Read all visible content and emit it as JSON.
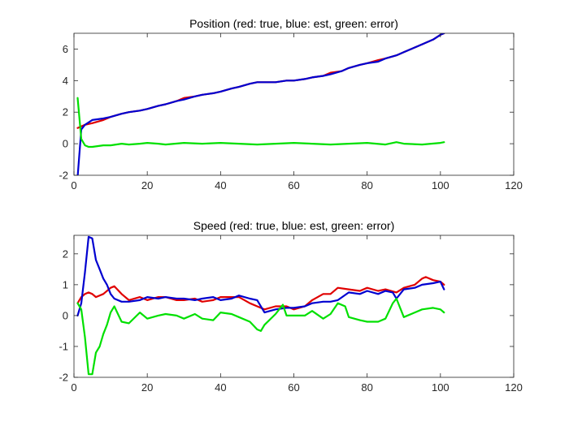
{
  "chart_data": [
    {
      "type": "line",
      "title": "Position (red: true, blue: est, green: error)",
      "xlim": [
        0,
        120
      ],
      "ylim": [
        -2,
        7
      ],
      "xticks": [
        0,
        20,
        40,
        60,
        80,
        100,
        120
      ],
      "yticks": [
        -2,
        0,
        2,
        4,
        6
      ],
      "grid": false,
      "series": [
        {
          "color": "#e00000",
          "x": [
            1,
            2,
            3,
            5,
            8,
            10,
            13,
            15,
            18,
            20,
            23,
            25,
            28,
            30,
            33,
            35,
            38,
            40,
            43,
            45,
            48,
            50,
            52,
            55,
            58,
            60,
            63,
            65,
            68,
            70,
            73,
            75,
            78,
            80,
            83,
            85,
            88,
            90,
            93,
            95,
            98,
            100,
            101
          ],
          "y": [
            1.0,
            1.1,
            1.2,
            1.3,
            1.5,
            1.7,
            1.9,
            2.0,
            2.1,
            2.2,
            2.4,
            2.5,
            2.7,
            2.9,
            3.0,
            3.1,
            3.2,
            3.3,
            3.5,
            3.6,
            3.8,
            3.9,
            3.9,
            3.9,
            4.0,
            4.0,
            4.1,
            4.2,
            4.3,
            4.5,
            4.6,
            4.8,
            5.0,
            5.1,
            5.3,
            5.4,
            5.6,
            5.8,
            6.1,
            6.3,
            6.6,
            6.9,
            7.0
          ]
        },
        {
          "color": "#0000d0",
          "x": [
            1,
            2,
            3,
            5,
            8,
            10,
            13,
            15,
            18,
            20,
            23,
            25,
            28,
            30,
            33,
            35,
            38,
            40,
            43,
            45,
            48,
            50,
            52,
            55,
            58,
            60,
            63,
            65,
            68,
            70,
            73,
            75,
            78,
            80,
            83,
            85,
            88,
            90,
            93,
            95,
            98,
            100,
            101
          ],
          "y": [
            -2.1,
            0.9,
            1.2,
            1.5,
            1.6,
            1.7,
            1.9,
            2.0,
            2.1,
            2.2,
            2.4,
            2.5,
            2.7,
            2.8,
            3.0,
            3.1,
            3.2,
            3.3,
            3.5,
            3.6,
            3.8,
            3.9,
            3.9,
            3.9,
            4.0,
            4.0,
            4.1,
            4.2,
            4.3,
            4.4,
            4.6,
            4.8,
            5.0,
            5.1,
            5.2,
            5.4,
            5.6,
            5.8,
            6.1,
            6.3,
            6.6,
            6.9,
            7.0
          ]
        },
        {
          "color": "#00e000",
          "x": [
            1,
            2,
            3,
            4,
            5,
            8,
            10,
            13,
            15,
            18,
            20,
            23,
            25,
            30,
            35,
            40,
            45,
            50,
            55,
            60,
            65,
            70,
            75,
            80,
            85,
            88,
            90,
            95,
            100,
            101
          ],
          "y": [
            2.9,
            0.3,
            -0.1,
            -0.2,
            -0.2,
            -0.1,
            -0.1,
            0.0,
            -0.05,
            0.0,
            0.05,
            0.0,
            -0.05,
            0.05,
            0.0,
            0.05,
            0.0,
            -0.05,
            0.0,
            0.05,
            0.0,
            -0.05,
            0.0,
            0.05,
            -0.05,
            0.1,
            0.0,
            -0.05,
            0.05,
            0.1
          ]
        }
      ]
    },
    {
      "type": "line",
      "title": "Speed (red: true, blue: est, green: error)",
      "xlim": [
        0,
        120
      ],
      "ylim": [
        -2,
        2.6
      ],
      "xticks": [
        0,
        20,
        40,
        60,
        80,
        100,
        120
      ],
      "yticks": [
        -2,
        -1,
        0,
        1,
        2
      ],
      "grid": false,
      "series": [
        {
          "color": "#e00000",
          "x": [
            1,
            2,
            3,
            4,
            5,
            6,
            8,
            10,
            11,
            13,
            15,
            18,
            20,
            23,
            25,
            28,
            30,
            33,
            35,
            38,
            40,
            43,
            45,
            48,
            50,
            52,
            55,
            58,
            60,
            63,
            65,
            68,
            70,
            72,
            75,
            78,
            80,
            83,
            85,
            88,
            90,
            93,
            95,
            96,
            98,
            100,
            101
          ],
          "y": [
            0.4,
            0.6,
            0.7,
            0.75,
            0.7,
            0.6,
            0.7,
            0.9,
            0.95,
            0.7,
            0.5,
            0.6,
            0.5,
            0.6,
            0.6,
            0.5,
            0.5,
            0.55,
            0.45,
            0.5,
            0.6,
            0.6,
            0.6,
            0.4,
            0.3,
            0.2,
            0.3,
            0.3,
            0.2,
            0.3,
            0.5,
            0.7,
            0.7,
            0.9,
            0.85,
            0.8,
            0.9,
            0.8,
            0.85,
            0.75,
            0.9,
            1.0,
            1.2,
            1.25,
            1.15,
            1.1,
            1.0
          ]
        },
        {
          "color": "#0000d0",
          "x": [
            1,
            2,
            3,
            4,
            5,
            6,
            7,
            8,
            9,
            10,
            11,
            13,
            15,
            18,
            20,
            23,
            25,
            28,
            30,
            33,
            35,
            38,
            40,
            43,
            45,
            48,
            50,
            52,
            55,
            58,
            60,
            63,
            65,
            68,
            70,
            72,
            75,
            78,
            80,
            83,
            85,
            87,
            88,
            90,
            93,
            95,
            98,
            100,
            101
          ],
          "y": [
            0.0,
            0.4,
            1.4,
            2.55,
            2.5,
            1.8,
            1.5,
            1.2,
            1.0,
            0.7,
            0.55,
            0.45,
            0.45,
            0.5,
            0.6,
            0.55,
            0.6,
            0.55,
            0.55,
            0.5,
            0.55,
            0.6,
            0.5,
            0.55,
            0.65,
            0.55,
            0.5,
            0.1,
            0.2,
            0.25,
            0.25,
            0.3,
            0.4,
            0.45,
            0.45,
            0.5,
            0.75,
            0.7,
            0.8,
            0.7,
            0.8,
            0.75,
            0.55,
            0.85,
            0.9,
            1.0,
            1.05,
            1.1,
            0.85
          ]
        },
        {
          "color": "#00e000",
          "x": [
            1,
            2,
            3,
            4,
            5,
            6,
            7,
            8,
            9,
            10,
            11,
            13,
            15,
            18,
            20,
            23,
            25,
            28,
            30,
            33,
            35,
            38,
            40,
            43,
            45,
            48,
            50,
            51,
            52,
            55,
            57,
            58,
            60,
            63,
            65,
            68,
            70,
            72,
            74,
            75,
            78,
            80,
            83,
            85,
            87,
            88,
            90,
            93,
            95,
            98,
            100,
            101
          ],
          "y": [
            0.4,
            0.2,
            -0.7,
            -1.9,
            -1.9,
            -1.2,
            -1.0,
            -0.6,
            -0.3,
            0.1,
            0.3,
            -0.2,
            -0.25,
            0.1,
            -0.1,
            0.0,
            0.05,
            0.0,
            -0.1,
            0.05,
            -0.1,
            -0.15,
            0.1,
            0.05,
            -0.05,
            -0.2,
            -0.45,
            -0.5,
            -0.3,
            0.05,
            0.35,
            0.0,
            0.0,
            0.0,
            0.15,
            -0.1,
            0.05,
            0.4,
            0.3,
            -0.05,
            -0.15,
            -0.2,
            -0.2,
            -0.1,
            0.4,
            0.55,
            -0.05,
            0.1,
            0.2,
            0.25,
            0.2,
            0.1
          ]
        }
      ]
    }
  ]
}
